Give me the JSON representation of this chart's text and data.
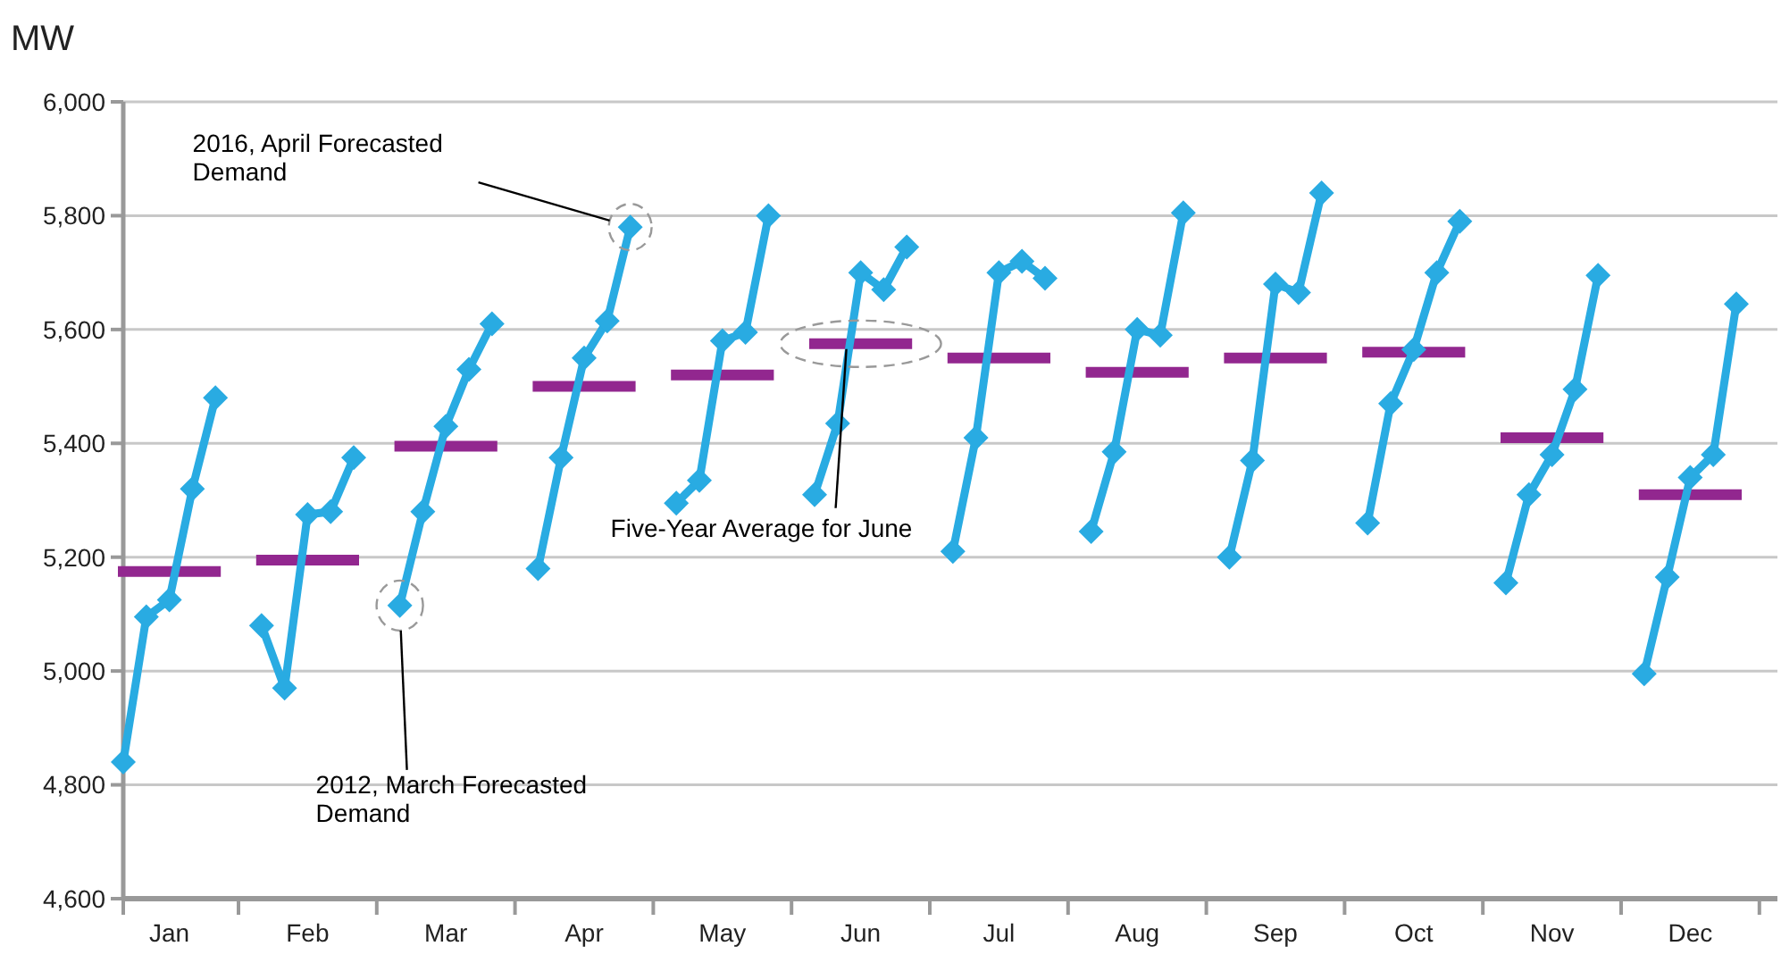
{
  "chart_data": {
    "type": "line",
    "ylabel": "MW",
    "categories": [
      null,
      null,
      "Jan",
      null,
      null,
      null,
      null,
      null,
      "Feb",
      null,
      null,
      null,
      null,
      null,
      "Mar",
      null,
      null,
      null,
      null,
      null,
      "Apr",
      null,
      null,
      null,
      null,
      null,
      "May",
      null,
      null,
      null,
      null,
      null,
      "Jun",
      null,
      null,
      null,
      null,
      null,
      "Jul",
      null,
      null,
      null,
      null,
      null,
      "Aug",
      null,
      null,
      null,
      null,
      null,
      "Sep",
      null,
      null,
      null,
      null,
      null,
      "Oct",
      null,
      null,
      null,
      null,
      null,
      "Nov",
      null,
      null,
      null,
      null,
      null,
      "Dec",
      null,
      null,
      null
    ],
    "ylim": [
      4600,
      6000
    ],
    "yticks": [
      {
        "value": 4600,
        "label": "4,600"
      },
      {
        "value": 4800,
        "label": "4,800"
      },
      {
        "value": 5000,
        "label": "5,000"
      },
      {
        "value": 5200,
        "label": "5,200"
      },
      {
        "value": 5400,
        "label": "5,400"
      },
      {
        "value": 5600,
        "label": "5,600"
      },
      {
        "value": 5800,
        "label": "5,800"
      },
      {
        "value": 6000,
        "label": "6,000"
      }
    ],
    "grid": "y",
    "series": [
      {
        "color": "#29abe2",
        "marker": "diamond",
        "values": [
          4840,
          5095,
          5125,
          5320,
          5480,
          null,
          5080,
          4970,
          5275,
          5280,
          5375,
          null,
          5115,
          5280,
          5430,
          5530,
          5610,
          null,
          5180,
          5375,
          5550,
          5615,
          5780,
          null,
          5295,
          5335,
          5580,
          5595,
          5800,
          null,
          5310,
          5435,
          5700,
          5670,
          5745,
          null,
          5210,
          5410,
          5700,
          5720,
          5690,
          null,
          5245,
          5385,
          5600,
          5590,
          5805,
          null,
          5200,
          5370,
          5680,
          5665,
          5840,
          null,
          5260,
          5470,
          5565,
          5700,
          5790,
          null,
          5155,
          5310,
          5380,
          5495,
          5695,
          null,
          4995,
          5165,
          5340,
          5380,
          5645,
          null
        ]
      },
      {
        "color": "#92278f",
        "marker": "none",
        "values": [
          5175,
          5175,
          5175,
          5175,
          5175,
          null,
          5195,
          5195,
          5195,
          5195,
          5195,
          null,
          5395,
          5395,
          5395,
          5395,
          5395,
          null,
          5500,
          5500,
          5500,
          5500,
          5500,
          null,
          5520,
          5520,
          5520,
          5520,
          5520,
          null,
          5575,
          5575,
          5575,
          5575,
          5575,
          null,
          5550,
          5550,
          5550,
          5550,
          5550,
          null,
          5525,
          5525,
          5525,
          5525,
          5525,
          null,
          5550,
          5550,
          5550,
          5550,
          5550,
          null,
          5560,
          5560,
          5560,
          5560,
          5560,
          null,
          5410,
          5410,
          5410,
          5410,
          5410,
          null,
          5310,
          5310,
          5310,
          5310,
          5310,
          null
        ]
      }
    ],
    "annotations": [
      "2016, April Forecasted Demand",
      "2012, March Forecasted Demand",
      {
        "text": "Five-Year Average for June",
        "x": "Jun",
        "y": 5575
      }
    ]
  }
}
